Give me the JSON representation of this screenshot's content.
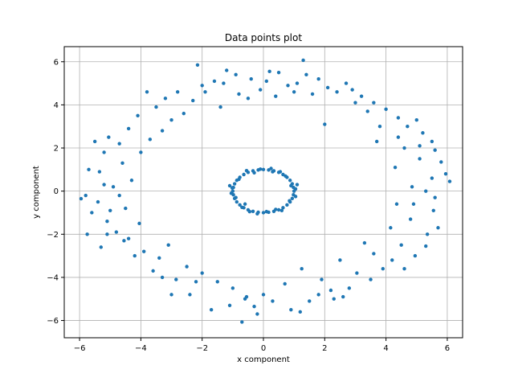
{
  "chart_data": {
    "type": "scatter",
    "title": "Data points plot",
    "xlabel": "x component",
    "ylabel": "y component",
    "xlim": [
      -6.5,
      6.5
    ],
    "ylim": [
      -6.8,
      6.7
    ],
    "xticks": [
      -6,
      -4,
      -2,
      0,
      2,
      4,
      6
    ],
    "yticks": [
      -6,
      -4,
      -2,
      0,
      2,
      4,
      6
    ],
    "xtick_labels": [
      "−6",
      "−4",
      "−2",
      "0",
      "2",
      "4",
      "6"
    ],
    "ytick_labels": [
      "−6",
      "−4",
      "−2",
      "0",
      "2",
      "4",
      "6"
    ],
    "grid": true,
    "legend": "none",
    "colors": {
      "marker": "#1f77b4",
      "grid": "#b0b0b0",
      "axis": "#000000"
    },
    "series": [
      {
        "points": [
          [
            1.0,
            0.0
          ],
          [
            0.98,
            0.17
          ],
          [
            0.94,
            0.34
          ],
          [
            0.87,
            0.5
          ],
          [
            0.77,
            0.64
          ],
          [
            0.64,
            0.77
          ],
          [
            0.5,
            0.87
          ],
          [
            0.34,
            0.94
          ],
          [
            0.17,
            0.98
          ],
          [
            0.0,
            1.0
          ],
          [
            -0.17,
            0.98
          ],
          [
            -0.34,
            0.94
          ],
          [
            -0.5,
            0.87
          ],
          [
            -0.64,
            0.77
          ],
          [
            -0.77,
            0.64
          ],
          [
            -0.87,
            0.5
          ],
          [
            -0.94,
            0.34
          ],
          [
            -0.98,
            0.17
          ],
          [
            -1.0,
            0.0
          ],
          [
            -0.98,
            -0.17
          ],
          [
            -0.94,
            -0.34
          ],
          [
            -0.87,
            -0.5
          ],
          [
            -0.77,
            -0.64
          ],
          [
            -0.64,
            -0.77
          ],
          [
            -0.5,
            -0.87
          ],
          [
            -0.34,
            -0.94
          ],
          [
            -0.17,
            -0.98
          ],
          [
            0.0,
            -1.0
          ],
          [
            0.17,
            -0.98
          ],
          [
            0.34,
            -0.94
          ],
          [
            0.5,
            -0.87
          ],
          [
            0.64,
            -0.77
          ],
          [
            0.77,
            -0.64
          ],
          [
            0.87,
            -0.5
          ],
          [
            0.94,
            -0.34
          ],
          [
            0.98,
            -0.17
          ],
          [
            1.05,
            0.1
          ],
          [
            0.9,
            0.25
          ],
          [
            0.72,
            0.7
          ],
          [
            0.55,
            0.9
          ],
          [
            0.25,
            1.05
          ],
          [
            -0.1,
            1.02
          ],
          [
            -0.3,
            0.85
          ],
          [
            -0.55,
            0.95
          ],
          [
            -0.8,
            0.55
          ],
          [
            -1.02,
            0.15
          ],
          [
            -1.05,
            -0.1
          ],
          [
            -0.9,
            -0.3
          ],
          [
            -0.7,
            -0.75
          ],
          [
            -0.45,
            -0.95
          ],
          [
            -0.2,
            -1.05
          ],
          [
            0.1,
            -0.95
          ],
          [
            0.4,
            -0.85
          ],
          [
            0.6,
            -0.9
          ],
          [
            0.85,
            -0.45
          ],
          [
            1.05,
            -0.25
          ],
          [
            1.1,
            0.3
          ],
          [
            -1.1,
            0.25
          ],
          [
            0.3,
            0.9
          ],
          [
            -0.6,
            -0.6
          ],
          [
            6.08,
            0.45
          ],
          [
            5.95,
            0.8
          ],
          [
            5.8,
            1.35
          ],
          [
            5.6,
            1.9
          ],
          [
            5.5,
            0.6
          ],
          [
            5.6,
            -0.3
          ],
          [
            5.55,
            -0.9
          ],
          [
            5.7,
            -1.7
          ],
          [
            5.5,
            2.3
          ],
          [
            5.35,
            -2.0
          ],
          [
            5.3,
            -2.55
          ],
          [
            5.2,
            2.7
          ],
          [
            5.1,
            1.5
          ],
          [
            5.0,
            3.3
          ],
          [
            4.95,
            -3.0
          ],
          [
            4.85,
            0.2
          ],
          [
            4.8,
            -1.3
          ],
          [
            4.7,
            3.0
          ],
          [
            4.6,
            2.0
          ],
          [
            4.5,
            -2.5
          ],
          [
            4.4,
            3.4
          ],
          [
            4.35,
            -0.6
          ],
          [
            4.3,
            1.1
          ],
          [
            4.2,
            -3.2
          ],
          [
            4.15,
            -1.7
          ],
          [
            4.0,
            3.8
          ],
          [
            3.9,
            -3.6
          ],
          [
            3.7,
            2.3
          ],
          [
            3.6,
            4.1
          ],
          [
            3.5,
            -4.1
          ],
          [
            3.4,
            3.7
          ],
          [
            3.3,
            -2.4
          ],
          [
            3.2,
            4.4
          ],
          [
            3.05,
            -3.8
          ],
          [
            2.9,
            4.7
          ],
          [
            2.8,
            -4.5
          ],
          [
            2.7,
            5.0
          ],
          [
            2.6,
            -4.9
          ],
          [
            2.4,
            4.6
          ],
          [
            2.3,
            -5.0
          ],
          [
            2.1,
            4.8
          ],
          [
            2.0,
            3.1
          ],
          [
            1.9,
            -4.1
          ],
          [
            1.8,
            -4.8
          ],
          [
            1.6,
            4.5
          ],
          [
            1.5,
            -5.1
          ],
          [
            1.4,
            5.4
          ],
          [
            1.3,
            6.07
          ],
          [
            1.25,
            -3.6
          ],
          [
            1.1,
            5.0
          ],
          [
            1.0,
            4.6
          ],
          [
            0.9,
            -5.5
          ],
          [
            0.8,
            4.9
          ],
          [
            0.7,
            -4.3
          ],
          [
            0.5,
            5.5
          ],
          [
            0.4,
            4.4
          ],
          [
            0.3,
            -5.1
          ],
          [
            0.1,
            5.1
          ],
          [
            0.0,
            -4.8
          ],
          [
            -0.1,
            4.7
          ],
          [
            -0.2,
            -5.7
          ],
          [
            -0.4,
            5.2
          ],
          [
            -0.5,
            4.3
          ],
          [
            -0.55,
            -4.9
          ],
          [
            -0.7,
            -6.07
          ],
          [
            -0.8,
            4.5
          ],
          [
            -0.9,
            5.4
          ],
          [
            -1.0,
            -4.5
          ],
          [
            -1.1,
            -5.3
          ],
          [
            -1.3,
            5.0
          ],
          [
            -1.4,
            3.9
          ],
          [
            -1.5,
            -4.2
          ],
          [
            -1.6,
            5.1
          ],
          [
            -1.7,
            -5.5
          ],
          [
            -1.9,
            4.6
          ],
          [
            -2.0,
            -3.8
          ],
          [
            -2.15,
            5.85
          ],
          [
            -2.3,
            4.2
          ],
          [
            -2.4,
            -4.8
          ],
          [
            -2.5,
            -3.5
          ],
          [
            -2.6,
            3.6
          ],
          [
            -2.8,
            4.6
          ],
          [
            -2.85,
            -4.1
          ],
          [
            -3.0,
            3.3
          ],
          [
            -3.1,
            -2.5
          ],
          [
            -3.2,
            4.3
          ],
          [
            -3.3,
            2.8
          ],
          [
            -3.4,
            -3.1
          ],
          [
            -3.5,
            3.9
          ],
          [
            -3.6,
            -3.7
          ],
          [
            -3.7,
            2.4
          ],
          [
            -3.8,
            4.6
          ],
          [
            -3.9,
            -2.8
          ],
          [
            -4.0,
            1.8
          ],
          [
            -4.05,
            -1.5
          ],
          [
            -4.1,
            3.5
          ],
          [
            -4.2,
            -3.0
          ],
          [
            -4.3,
            0.5
          ],
          [
            -4.4,
            2.9
          ],
          [
            -4.5,
            -0.8
          ],
          [
            -4.55,
            -2.3
          ],
          [
            -4.6,
            1.3
          ],
          [
            -4.7,
            2.2
          ],
          [
            -4.8,
            -1.9
          ],
          [
            -4.9,
            0.2
          ],
          [
            -5.0,
            -0.9
          ],
          [
            -5.05,
            2.5
          ],
          [
            -5.1,
            -1.4
          ],
          [
            -5.2,
            1.8
          ],
          [
            -5.3,
            -2.6
          ],
          [
            -5.35,
            0.9
          ],
          [
            -5.4,
            -0.5
          ],
          [
            -5.5,
            2.3
          ],
          [
            -5.6,
            -1.0
          ],
          [
            -5.7,
            1.0
          ],
          [
            -5.75,
            -2.0
          ],
          [
            -5.8,
            -0.2
          ],
          [
            -5.95,
            -0.35
          ],
          [
            4.6,
            -3.6
          ],
          [
            3.8,
            3.0
          ],
          [
            3.6,
            -2.9
          ],
          [
            2.5,
            -3.2
          ],
          [
            -2.2,
            -4.2
          ],
          [
            -3.0,
            -4.8
          ],
          [
            1.8,
            5.2
          ],
          [
            -0.6,
            -5.0
          ],
          [
            5.3,
            0.0
          ],
          [
            -5.2,
            0.3
          ],
          [
            4.9,
            -0.6
          ],
          [
            -4.7,
            -0.2
          ],
          [
            0.2,
            5.55
          ],
          [
            -0.3,
            -5.35
          ],
          [
            2.2,
            -4.6
          ],
          [
            -2.0,
            4.9
          ],
          [
            3.0,
            4.1
          ],
          [
            -3.3,
            -4.0
          ],
          [
            4.4,
            2.5
          ],
          [
            -4.4,
            -2.2
          ],
          [
            5.1,
            2.1
          ],
          [
            -5.1,
            -2.0
          ],
          [
            1.2,
            -5.6
          ],
          [
            -1.2,
            5.6
          ]
        ]
      }
    ]
  }
}
